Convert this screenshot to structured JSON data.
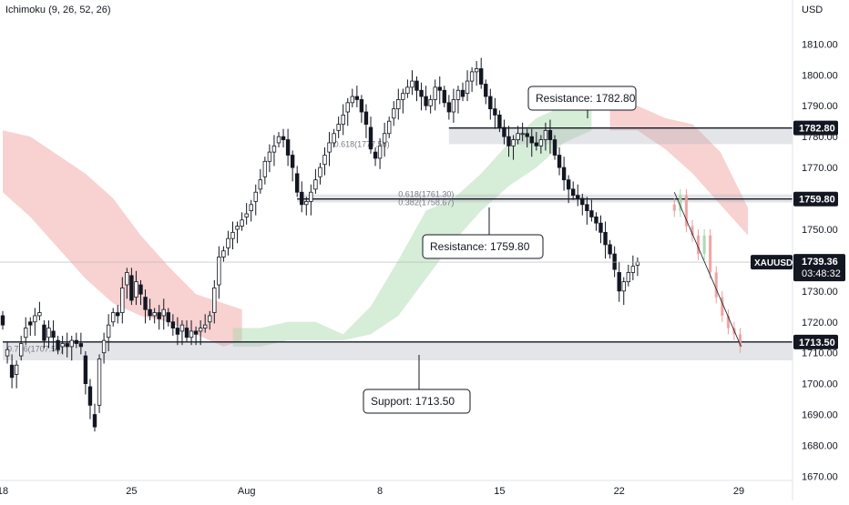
{
  "indicator": "Ichimoku (9, 26, 52, 26)",
  "currency": "USD",
  "colors": {
    "up": "#131722",
    "down": "#131722",
    "bg": "#ffffff",
    "cloud_bull": "#a5d6a7",
    "cloud_bear": "#ef9a9a",
    "zone": "#b2b5be",
    "projection_up": "#a5d6a7",
    "projection_down": "#ef9a9a"
  },
  "chart_data": {
    "type": "candlestick",
    "symbol": "XAUUSD",
    "y_axis": {
      "ticks": [
        "1810.00",
        "1800.00",
        "1790.00",
        "1780.00",
        "1770.00",
        "1760.00",
        "1750.00",
        "1740.00",
        "1730.00",
        "1720.00",
        "1710.00",
        "1700.00",
        "1690.00",
        "1680.00",
        "1670.00"
      ],
      "range": [
        1666,
        1816
      ]
    },
    "x_axis": {
      "ticks": [
        {
          "label": "18",
          "index": 0
        },
        {
          "label": "25",
          "index": 28
        },
        {
          "label": "Aug",
          "index": 53
        },
        {
          "label": "8",
          "index": 82
        },
        {
          "label": "15",
          "index": 108
        },
        {
          "label": "22",
          "index": 134
        },
        {
          "label": "29",
          "index": 160
        }
      ]
    },
    "closes": [
      1719,
      1711,
      1702,
      1706,
      1713,
      1718,
      1719,
      1722,
      1723,
      1714,
      1718,
      1715,
      1711,
      1713,
      1712,
      1714,
      1713,
      1712,
      1700,
      1693,
      1686,
      1708,
      1714,
      1719,
      1723,
      1722,
      1731,
      1736,
      1727,
      1733,
      1729,
      1724,
      1722,
      1723,
      1721,
      1724,
      1720,
      1718,
      1716,
      1719,
      1715,
      1717,
      1716,
      1718,
      1719,
      1722,
      1731,
      1741,
      1743,
      1747,
      1749,
      1751,
      1753,
      1755,
      1758,
      1762,
      1766,
      1772,
      1775,
      1777,
      1780,
      1779,
      1774,
      1770,
      1762,
      1758,
      1759,
      1762,
      1766,
      1770,
      1774,
      1778,
      1781,
      1784,
      1787,
      1791,
      1793,
      1792,
      1788,
      1784,
      1776,
      1773,
      1777,
      1781,
      1785,
      1789,
      1792,
      1794,
      1796,
      1798,
      1795,
      1793,
      1790,
      1792,
      1796,
      1795,
      1791,
      1788,
      1792,
      1795,
      1793,
      1798,
      1801,
      1802,
      1797,
      1793,
      1789,
      1787,
      1783,
      1780,
      1777,
      1779,
      1781,
      1781,
      1780,
      1778,
      1777,
      1779,
      1782,
      1779,
      1774,
      1770,
      1766,
      1763,
      1761,
      1760,
      1758,
      1756,
      1754,
      1752,
      1749,
      1745,
      1742,
      1737,
      1730,
      1733,
      1736,
      1738,
      1739.36
    ],
    "opens_offset": [
      3,
      -2,
      4,
      -3,
      -4,
      -3,
      1,
      -2,
      -1,
      5,
      -3,
      2,
      3,
      -1,
      1,
      -2,
      1,
      1,
      9,
      6,
      4,
      -15,
      -4,
      -4,
      -3,
      1,
      -8,
      -4,
      8,
      -5,
      3,
      4,
      2,
      -1,
      2,
      -2,
      3,
      2,
      2,
      -2,
      3,
      -2,
      1,
      -1,
      -1,
      -2,
      -8,
      -9,
      -2,
      -3,
      -2,
      -1,
      -2,
      -1,
      -2,
      -3,
      -3,
      -5,
      -3,
      -2,
      -2,
      1,
      5,
      4,
      6,
      4,
      -1,
      -3,
      -3,
      -3,
      -3,
      -3,
      -3,
      -2,
      -3,
      -3,
      -2,
      1,
      4,
      4,
      7,
      2,
      -4,
      -3,
      -4,
      -3,
      -3,
      -2,
      -2,
      -2,
      3,
      2,
      3,
      -2,
      -4,
      1,
      4,
      3,
      -4,
      -3,
      2,
      -4,
      -3,
      -1,
      5,
      4,
      4,
      2,
      4,
      3,
      3,
      -2,
      -2,
      0,
      1,
      2,
      1,
      -2,
      -3,
      3,
      5,
      4,
      4,
      3,
      2,
      1,
      2,
      2,
      2,
      2,
      3,
      4,
      3,
      5,
      6,
      -3,
      -3,
      -2,
      -1
    ],
    "projection": {
      "closes": [
        1756,
        1761,
        1751,
        1748,
        1742,
        1748,
        1736,
        1728,
        1722,
        1718,
        1716,
        1712
      ],
      "start_index": 146
    },
    "cloud_bear": {
      "x": [
        0,
        6,
        12,
        18,
        24,
        30,
        36,
        42,
        48,
        52
      ],
      "top": [
        1782,
        1780,
        1774,
        1768,
        1760,
        1748,
        1738,
        1729,
        1726,
        1724
      ],
      "bottom": [
        1762,
        1754,
        1744,
        1734,
        1726,
        1722,
        1720,
        1716,
        1712,
        1714
      ]
    },
    "cloud_bull": {
      "x": [
        50,
        56,
        62,
        68,
        74,
        80,
        86,
        92,
        98,
        104,
        110,
        116,
        122,
        128
      ],
      "top": [
        1718,
        1718,
        1720,
        1720,
        1716,
        1725,
        1740,
        1756,
        1760,
        1768,
        1778,
        1786,
        1790,
        1790
      ],
      "bottom": [
        1712,
        1712,
        1714,
        1714,
        1714,
        1716,
        1722,
        1734,
        1746,
        1756,
        1764,
        1770,
        1778,
        1782
      ]
    },
    "cloud_bear_future": {
      "x": [
        132,
        138,
        144,
        150,
        156,
        162
      ],
      "top": [
        1790,
        1790,
        1786,
        1784,
        1775,
        1757
      ],
      "bottom": [
        1782,
        1782,
        1776,
        1768,
        1758,
        1748
      ]
    },
    "levels": [
      {
        "name": "Resistance",
        "value": 1782.8,
        "label": "1782.80",
        "zone": [
          1777.56,
          1782.8
        ],
        "start_index": 97
      },
      {
        "name": "Resistance",
        "value": 1759.8,
        "label": "1759.80",
        "zone": [
          1758.67,
          1761.3
        ],
        "start_index": 64
      },
      {
        "name": "Support",
        "value": 1713.5,
        "label": "1713.50",
        "zone": [
          1707.55,
          1713.5
        ],
        "start_index": 0
      }
    ],
    "fib_labels": [
      "0.618(1777.56)",
      "0.618(1761.30)",
      "0.382(1758.67)",
      "0.786(1707.55)"
    ],
    "callouts": [
      "Resistance: 1782.80",
      "Resistance: 1759.80",
      "Support: 1713.50"
    ],
    "last_price": {
      "value": "1739.36",
      "countdown": "03:48:32"
    }
  }
}
